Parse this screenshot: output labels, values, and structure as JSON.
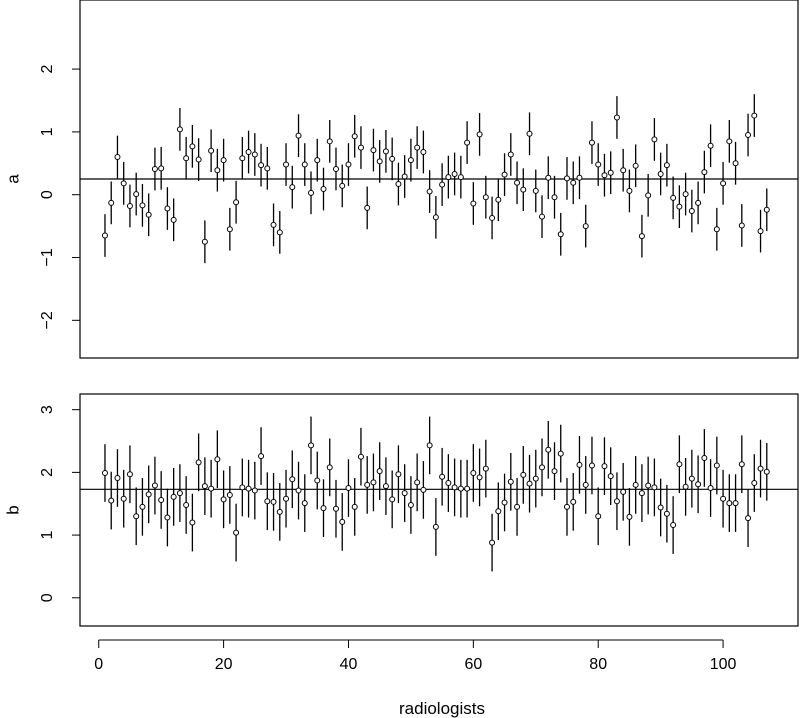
{
  "chart_data": {
    "type": "scatter",
    "variant": "point estimates with vertical interval bars and a horizontal reference line, two stacked panels sharing one x axis",
    "xlabel": "radiologists",
    "x_ticks": [
      0,
      20,
      40,
      60,
      80,
      100
    ],
    "xlim": [
      -3,
      112
    ],
    "grid": false,
    "legend": "none",
    "colors": {
      "points": "#000000",
      "bars": "#000000",
      "reference_line": "#000000"
    },
    "panels": [
      {
        "ylabel": "a",
        "ylim": [
          -2.6,
          3.1
        ],
        "y_ticks": [
          -2,
          -1,
          0,
          1,
          2
        ],
        "reference_line": 0.25,
        "interval_half_width": 0.34,
        "x": [
          1,
          2,
          3,
          4,
          5,
          6,
          7,
          8,
          9,
          10,
          11,
          12,
          13,
          14,
          15,
          16,
          17,
          18,
          19,
          20,
          21,
          22,
          23,
          24,
          25,
          26,
          27,
          28,
          29,
          30,
          31,
          32,
          33,
          34,
          35,
          36,
          37,
          38,
          39,
          40,
          41,
          42,
          43,
          44,
          45,
          46,
          47,
          48,
          49,
          50,
          51,
          52,
          53,
          54,
          55,
          56,
          57,
          58,
          59,
          60,
          61,
          62,
          63,
          64,
          65,
          66,
          67,
          68,
          69,
          70,
          71,
          72,
          73,
          74,
          75,
          76,
          77,
          78,
          79,
          80,
          81,
          82,
          83,
          84,
          85,
          86,
          87,
          88,
          89,
          90,
          91,
          92,
          93,
          94,
          95,
          96,
          97,
          98,
          99,
          100,
          101,
          102,
          103,
          104,
          105,
          106,
          107
        ],
        "y": [
          -0.65,
          -0.13,
          0.6,
          0.18,
          -0.18,
          0.01,
          -0.17,
          -0.32,
          0.41,
          0.42,
          -0.22,
          -0.4,
          1.04,
          0.58,
          0.77,
          0.56,
          -0.75,
          0.7,
          0.39,
          0.55,
          -0.55,
          -0.12,
          0.58,
          0.68,
          0.64,
          0.47,
          0.42,
          -0.48,
          -0.6,
          0.48,
          0.12,
          0.94,
          0.48,
          0.03,
          0.55,
          0.09,
          0.85,
          0.41,
          0.14,
          0.48,
          0.93,
          0.75,
          -0.21,
          0.71,
          0.53,
          0.69,
          0.57,
          0.17,
          0.29,
          0.55,
          0.75,
          0.68,
          0.05,
          -0.36,
          0.16,
          0.28,
          0.33,
          0.28,
          0.83,
          -0.14,
          0.96,
          -0.04,
          -0.37,
          -0.08,
          0.32,
          0.64,
          0.19,
          0.08,
          0.97,
          0.06,
          -0.35,
          0.27,
          -0.04,
          -0.63,
          0.26,
          0.19,
          0.27,
          -0.5,
          0.83,
          0.48,
          0.31,
          0.35,
          1.23,
          0.39,
          0.06,
          0.46,
          -0.66,
          -0.01,
          0.88,
          0.33,
          0.47,
          -0.05,
          -0.19,
          0.01,
          -0.26,
          -0.13,
          0.36,
          0.78,
          -0.55,
          0.18,
          0.85,
          0.5,
          -0.49,
          0.95,
          1.26,
          -0.58,
          -0.24
        ]
      },
      {
        "ylabel": "b",
        "ylim": [
          -0.45,
          3.25
        ],
        "y_ticks": [
          0,
          1,
          2,
          3
        ],
        "reference_line": 1.73,
        "interval_half_width": 0.46,
        "x": [
          1,
          2,
          3,
          4,
          5,
          6,
          7,
          8,
          9,
          10,
          11,
          12,
          13,
          14,
          15,
          16,
          17,
          18,
          19,
          20,
          21,
          22,
          23,
          24,
          25,
          26,
          27,
          28,
          29,
          30,
          31,
          32,
          33,
          34,
          35,
          36,
          37,
          38,
          39,
          40,
          41,
          42,
          43,
          44,
          45,
          46,
          47,
          48,
          49,
          50,
          51,
          52,
          53,
          54,
          55,
          56,
          57,
          58,
          59,
          60,
          61,
          62,
          63,
          64,
          65,
          66,
          67,
          68,
          69,
          70,
          71,
          72,
          73,
          74,
          75,
          76,
          77,
          78,
          79,
          80,
          81,
          82,
          83,
          84,
          85,
          86,
          87,
          88,
          89,
          90,
          91,
          92,
          93,
          94,
          95,
          96,
          97,
          98,
          99,
          100,
          101,
          102,
          103,
          104,
          105,
          106,
          107
        ],
        "y": [
          1.99,
          1.55,
          1.91,
          1.58,
          1.97,
          1.3,
          1.45,
          1.65,
          1.79,
          1.56,
          1.28,
          1.61,
          1.67,
          1.48,
          1.2,
          2.16,
          1.78,
          1.74,
          2.21,
          1.57,
          1.64,
          1.04,
          1.76,
          1.74,
          1.71,
          2.26,
          1.54,
          1.53,
          1.37,
          1.58,
          1.89,
          1.71,
          1.51,
          2.43,
          1.87,
          1.43,
          2.08,
          1.42,
          1.21,
          1.75,
          1.45,
          2.25,
          1.8,
          1.84,
          2.02,
          1.78,
          1.57,
          1.97,
          1.67,
          1.48,
          1.84,
          1.72,
          2.43,
          1.13,
          1.93,
          1.83,
          1.76,
          1.74,
          1.74,
          1.99,
          1.92,
          2.06,
          0.88,
          1.38,
          1.52,
          1.85,
          1.45,
          1.96,
          1.82,
          1.9,
          2.08,
          2.36,
          2.02,
          2.3,
          1.45,
          1.53,
          2.12,
          1.8,
          2.11,
          1.3,
          2.1,
          1.94,
          1.54,
          1.69,
          1.29,
          1.8,
          1.67,
          1.79,
          1.76,
          1.44,
          1.34,
          1.16,
          2.13,
          1.77,
          1.9,
          1.81,
          2.23,
          1.75,
          2.11,
          1.58,
          1.51,
          1.51,
          2.13,
          1.27,
          1.83,
          2.06,
          2.01
        ]
      }
    ]
  }
}
